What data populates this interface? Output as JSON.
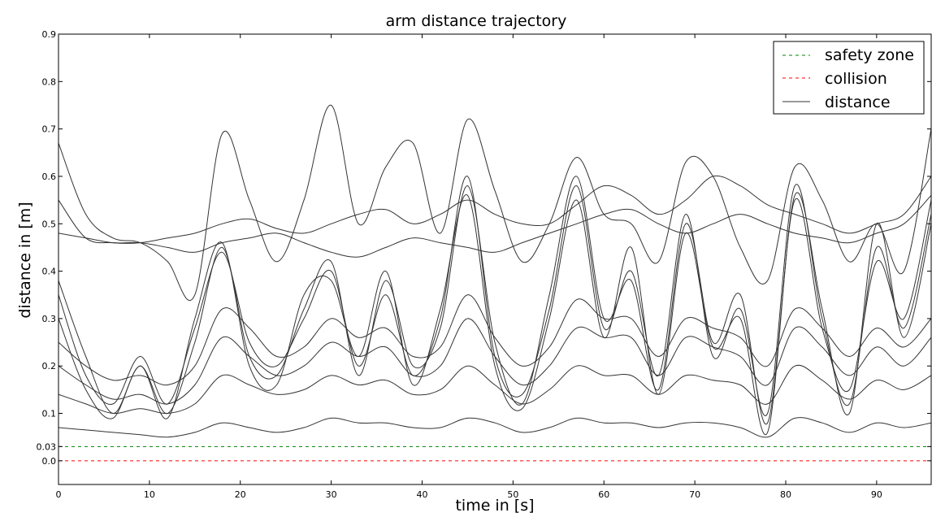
{
  "chart_data": {
    "type": "line",
    "title": "arm distance trajectory",
    "xlabel": "time in [s]",
    "ylabel": "distance in [m]",
    "xlim": [
      0,
      96
    ],
    "ylim": [
      -0.05,
      0.9
    ],
    "x_ticks": [
      0,
      10,
      20,
      30,
      40,
      50,
      60,
      70,
      80,
      90
    ],
    "y_ticks": [
      0.0,
      0.03,
      0.1,
      0.2,
      0.3,
      0.4,
      0.5,
      0.6,
      0.7,
      0.8,
      0.9
    ],
    "y_tick_labels": [
      "0.0",
      "0.03",
      "0.1",
      "0.2",
      "0.3",
      "0.4",
      "0.5",
      "0.6",
      "0.7",
      "0.8",
      "0.9"
    ],
    "grid": false,
    "legend_position": "top-right",
    "colors": {
      "safety": "#008000",
      "collision": "#ff0000",
      "distance": "#333333"
    },
    "reference_lines": [
      {
        "name": "safety zone",
        "y": 0.03,
        "style": "dashed",
        "color": "#008000"
      },
      {
        "name": "collision",
        "y": 0.0,
        "style": "dashed",
        "color": "#ff0000"
      }
    ],
    "legend": [
      {
        "label": "safety zone",
        "style": "dashed",
        "color": "#008000"
      },
      {
        "label": "collision",
        "style": "dashed",
        "color": "#ff0000"
      },
      {
        "label": "distance",
        "style": "solid",
        "color": "#333333"
      }
    ],
    "series": [
      {
        "x": [
          0,
          3,
          6,
          9,
          12,
          15,
          18,
          21,
          24,
          27,
          30,
          33,
          36,
          39,
          42,
          45,
          48,
          51,
          54,
          57,
          60,
          63,
          66,
          69,
          72,
          75,
          78,
          81,
          84,
          87,
          90,
          93,
          96
        ],
        "y": [
          0.67,
          0.52,
          0.47,
          0.46,
          0.42,
          0.35,
          0.69,
          0.55,
          0.42,
          0.55,
          0.75,
          0.5,
          0.62,
          0.67,
          0.48,
          0.72,
          0.57,
          0.42,
          0.5,
          0.64,
          0.52,
          0.5,
          0.42,
          0.63,
          0.6,
          0.45,
          0.38,
          0.62,
          0.55,
          0.42,
          0.5,
          0.4,
          0.7
        ]
      },
      {
        "x": [
          0,
          3,
          6,
          9,
          12,
          15,
          18,
          21,
          24,
          27,
          30,
          33,
          36,
          39,
          42,
          45,
          48,
          51,
          54,
          57,
          60,
          63,
          66,
          69,
          72,
          75,
          78,
          81,
          84,
          87,
          90,
          93,
          96
        ],
        "y": [
          0.55,
          0.47,
          0.46,
          0.46,
          0.47,
          0.48,
          0.5,
          0.51,
          0.49,
          0.48,
          0.5,
          0.52,
          0.53,
          0.5,
          0.52,
          0.55,
          0.52,
          0.5,
          0.5,
          0.54,
          0.58,
          0.56,
          0.52,
          0.55,
          0.6,
          0.58,
          0.54,
          0.52,
          0.5,
          0.48,
          0.5,
          0.52,
          0.6
        ]
      },
      {
        "x": [
          0,
          3,
          6,
          9,
          12,
          15,
          18,
          21,
          24,
          27,
          30,
          33,
          36,
          39,
          42,
          45,
          48,
          51,
          54,
          57,
          60,
          63,
          66,
          69,
          72,
          75,
          78,
          81,
          84,
          87,
          90,
          93,
          96
        ],
        "y": [
          0.38,
          0.22,
          0.1,
          0.2,
          0.1,
          0.25,
          0.45,
          0.22,
          0.18,
          0.32,
          0.42,
          0.18,
          0.38,
          0.2,
          0.28,
          0.58,
          0.25,
          0.12,
          0.35,
          0.6,
          0.3,
          0.38,
          0.15,
          0.5,
          0.25,
          0.35,
          0.08,
          0.55,
          0.28,
          0.15,
          0.42,
          0.3,
          0.55
        ]
      },
      {
        "x": [
          0,
          3,
          6,
          9,
          12,
          15,
          18,
          21,
          24,
          27,
          30,
          33,
          36,
          39,
          42,
          45,
          48,
          51,
          54,
          57,
          60,
          63,
          66,
          69,
          72,
          75,
          78,
          81,
          84,
          87,
          90,
          93,
          96
        ],
        "y": [
          0.35,
          0.18,
          0.12,
          0.22,
          0.12,
          0.28,
          0.44,
          0.25,
          0.2,
          0.3,
          0.4,
          0.2,
          0.35,
          0.18,
          0.3,
          0.6,
          0.22,
          0.14,
          0.32,
          0.58,
          0.28,
          0.4,
          0.18,
          0.52,
          0.22,
          0.32,
          0.1,
          0.58,
          0.3,
          0.12,
          0.45,
          0.28,
          0.52
        ]
      },
      {
        "x": [
          0,
          3,
          6,
          9,
          12,
          15,
          18,
          21,
          24,
          27,
          30,
          33,
          36,
          39,
          42,
          45,
          48,
          51,
          54,
          57,
          60,
          63,
          66,
          69,
          72,
          75,
          78,
          81,
          84,
          87,
          90,
          93,
          96
        ],
        "y": [
          0.3,
          0.15,
          0.09,
          0.2,
          0.09,
          0.3,
          0.46,
          0.2,
          0.16,
          0.35,
          0.38,
          0.22,
          0.4,
          0.16,
          0.32,
          0.56,
          0.2,
          0.11,
          0.3,
          0.55,
          0.26,
          0.45,
          0.14,
          0.48,
          0.24,
          0.3,
          0.06,
          0.56,
          0.32,
          0.1,
          0.5,
          0.26,
          0.5
        ]
      },
      {
        "x": [
          0,
          3,
          6,
          9,
          12,
          15,
          18,
          21,
          24,
          27,
          30,
          33,
          36,
          39,
          42,
          45,
          48,
          51,
          54,
          57,
          60,
          63,
          66,
          69,
          72,
          75,
          78,
          81,
          84,
          87,
          90,
          93,
          96
        ],
        "y": [
          0.25,
          0.2,
          0.17,
          0.18,
          0.16,
          0.2,
          0.32,
          0.28,
          0.22,
          0.24,
          0.3,
          0.26,
          0.28,
          0.22,
          0.24,
          0.35,
          0.26,
          0.2,
          0.24,
          0.34,
          0.3,
          0.3,
          0.22,
          0.3,
          0.28,
          0.26,
          0.2,
          0.32,
          0.28,
          0.22,
          0.28,
          0.24,
          0.3
        ]
      },
      {
        "x": [
          0,
          3,
          6,
          9,
          12,
          15,
          18,
          21,
          24,
          27,
          30,
          33,
          36,
          39,
          42,
          45,
          48,
          51,
          54,
          57,
          60,
          63,
          66,
          69,
          72,
          75,
          78,
          81,
          84,
          87,
          90,
          93,
          96
        ],
        "y": [
          0.2,
          0.16,
          0.13,
          0.14,
          0.12,
          0.16,
          0.26,
          0.22,
          0.18,
          0.2,
          0.25,
          0.22,
          0.24,
          0.18,
          0.2,
          0.3,
          0.22,
          0.16,
          0.2,
          0.28,
          0.26,
          0.26,
          0.18,
          0.26,
          0.24,
          0.22,
          0.16,
          0.28,
          0.24,
          0.18,
          0.24,
          0.2,
          0.26
        ]
      },
      {
        "x": [
          0,
          3,
          6,
          9,
          12,
          15,
          18,
          21,
          24,
          27,
          30,
          33,
          36,
          39,
          42,
          45,
          48,
          51,
          54,
          57,
          60,
          63,
          66,
          69,
          72,
          75,
          78,
          81,
          84,
          87,
          90,
          93,
          96
        ],
        "y": [
          0.14,
          0.12,
          0.1,
          0.11,
          0.1,
          0.12,
          0.18,
          0.16,
          0.14,
          0.15,
          0.18,
          0.16,
          0.17,
          0.14,
          0.15,
          0.2,
          0.16,
          0.12,
          0.15,
          0.2,
          0.18,
          0.18,
          0.14,
          0.18,
          0.17,
          0.16,
          0.12,
          0.2,
          0.17,
          0.13,
          0.17,
          0.15,
          0.18
        ]
      },
      {
        "x": [
          0,
          3,
          6,
          9,
          12,
          15,
          18,
          21,
          24,
          27,
          30,
          33,
          36,
          39,
          42,
          45,
          48,
          51,
          54,
          57,
          60,
          63,
          66,
          69,
          72,
          75,
          78,
          81,
          84,
          87,
          90,
          93,
          96
        ],
        "y": [
          0.07,
          0.065,
          0.06,
          0.055,
          0.05,
          0.06,
          0.08,
          0.07,
          0.06,
          0.07,
          0.09,
          0.08,
          0.08,
          0.07,
          0.07,
          0.09,
          0.08,
          0.06,
          0.07,
          0.09,
          0.08,
          0.08,
          0.07,
          0.08,
          0.08,
          0.07,
          0.05,
          0.09,
          0.08,
          0.06,
          0.08,
          0.07,
          0.08
        ]
      },
      {
        "x": [
          0,
          3,
          6,
          9,
          12,
          15,
          18,
          21,
          24,
          27,
          30,
          33,
          36,
          39,
          42,
          45,
          48,
          51,
          54,
          57,
          60,
          63,
          66,
          69,
          72,
          75,
          78,
          81,
          84,
          87,
          90,
          93,
          96
        ],
        "y": [
          0.48,
          0.47,
          0.46,
          0.46,
          0.45,
          0.44,
          0.46,
          0.47,
          0.48,
          0.46,
          0.44,
          0.43,
          0.45,
          0.47,
          0.46,
          0.45,
          0.44,
          0.46,
          0.48,
          0.5,
          0.52,
          0.53,
          0.5,
          0.48,
          0.5,
          0.52,
          0.5,
          0.48,
          0.47,
          0.46,
          0.48,
          0.5,
          0.56
        ]
      }
    ]
  }
}
